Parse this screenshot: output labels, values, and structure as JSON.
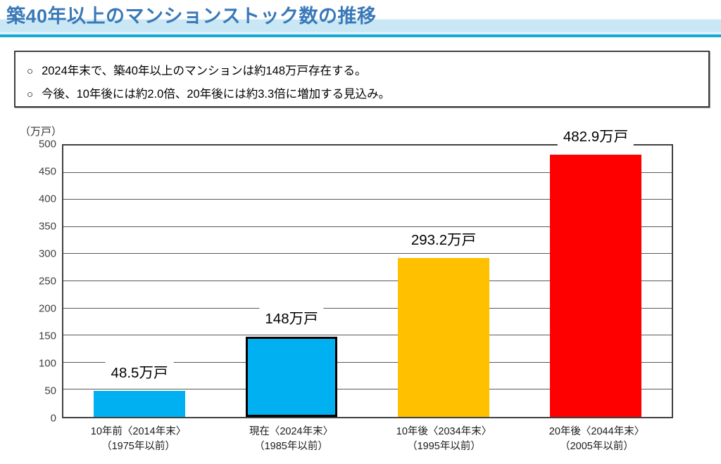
{
  "header": {
    "title": "築40年以上のマンションストック数の推移"
  },
  "summary": {
    "bullet_marker": "○",
    "bullets": [
      "2024年末で、築40年以上のマンションは約148万戸存在する。",
      "今後、10年後には約2.0倍、20年後には約3.3倍に増加する見込み。"
    ]
  },
  "chart_data": {
    "type": "bar",
    "title": "築40年以上のマンションストック数の推移",
    "unit_label": "（万戸）",
    "categories": [
      [
        "10年前〈2014年末〉",
        "（1975年以前）"
      ],
      [
        "現在〈2024年末〉",
        "（1985年以前）"
      ],
      [
        "10年後〈2034年末〉",
        "（1995年以前）"
      ],
      [
        "20年後〈2044年末〉",
        "（2005年以前）"
      ]
    ],
    "values": [
      48.5,
      148,
      293.2,
      482.9
    ],
    "value_labels": [
      "48.5万戸",
      "148万戸",
      "293.2万戸",
      "482.9万戸"
    ],
    "bar_colors": [
      "#00b0f0",
      "#00b0f0",
      "#ffc000",
      "#ff0000"
    ],
    "highlighted_index": 1,
    "ylim": [
      0,
      500
    ],
    "ytick_step": 50,
    "grid": true,
    "legend": false
  },
  "colors": {
    "title_blue": "#3a79b8",
    "header_band": "#c9e7f5",
    "header_line": "#18a7d2",
    "bar_cyan": "#00b0f0",
    "bar_gold": "#ffc000",
    "bar_red": "#ff0000",
    "highlight_border": "#000000"
  }
}
